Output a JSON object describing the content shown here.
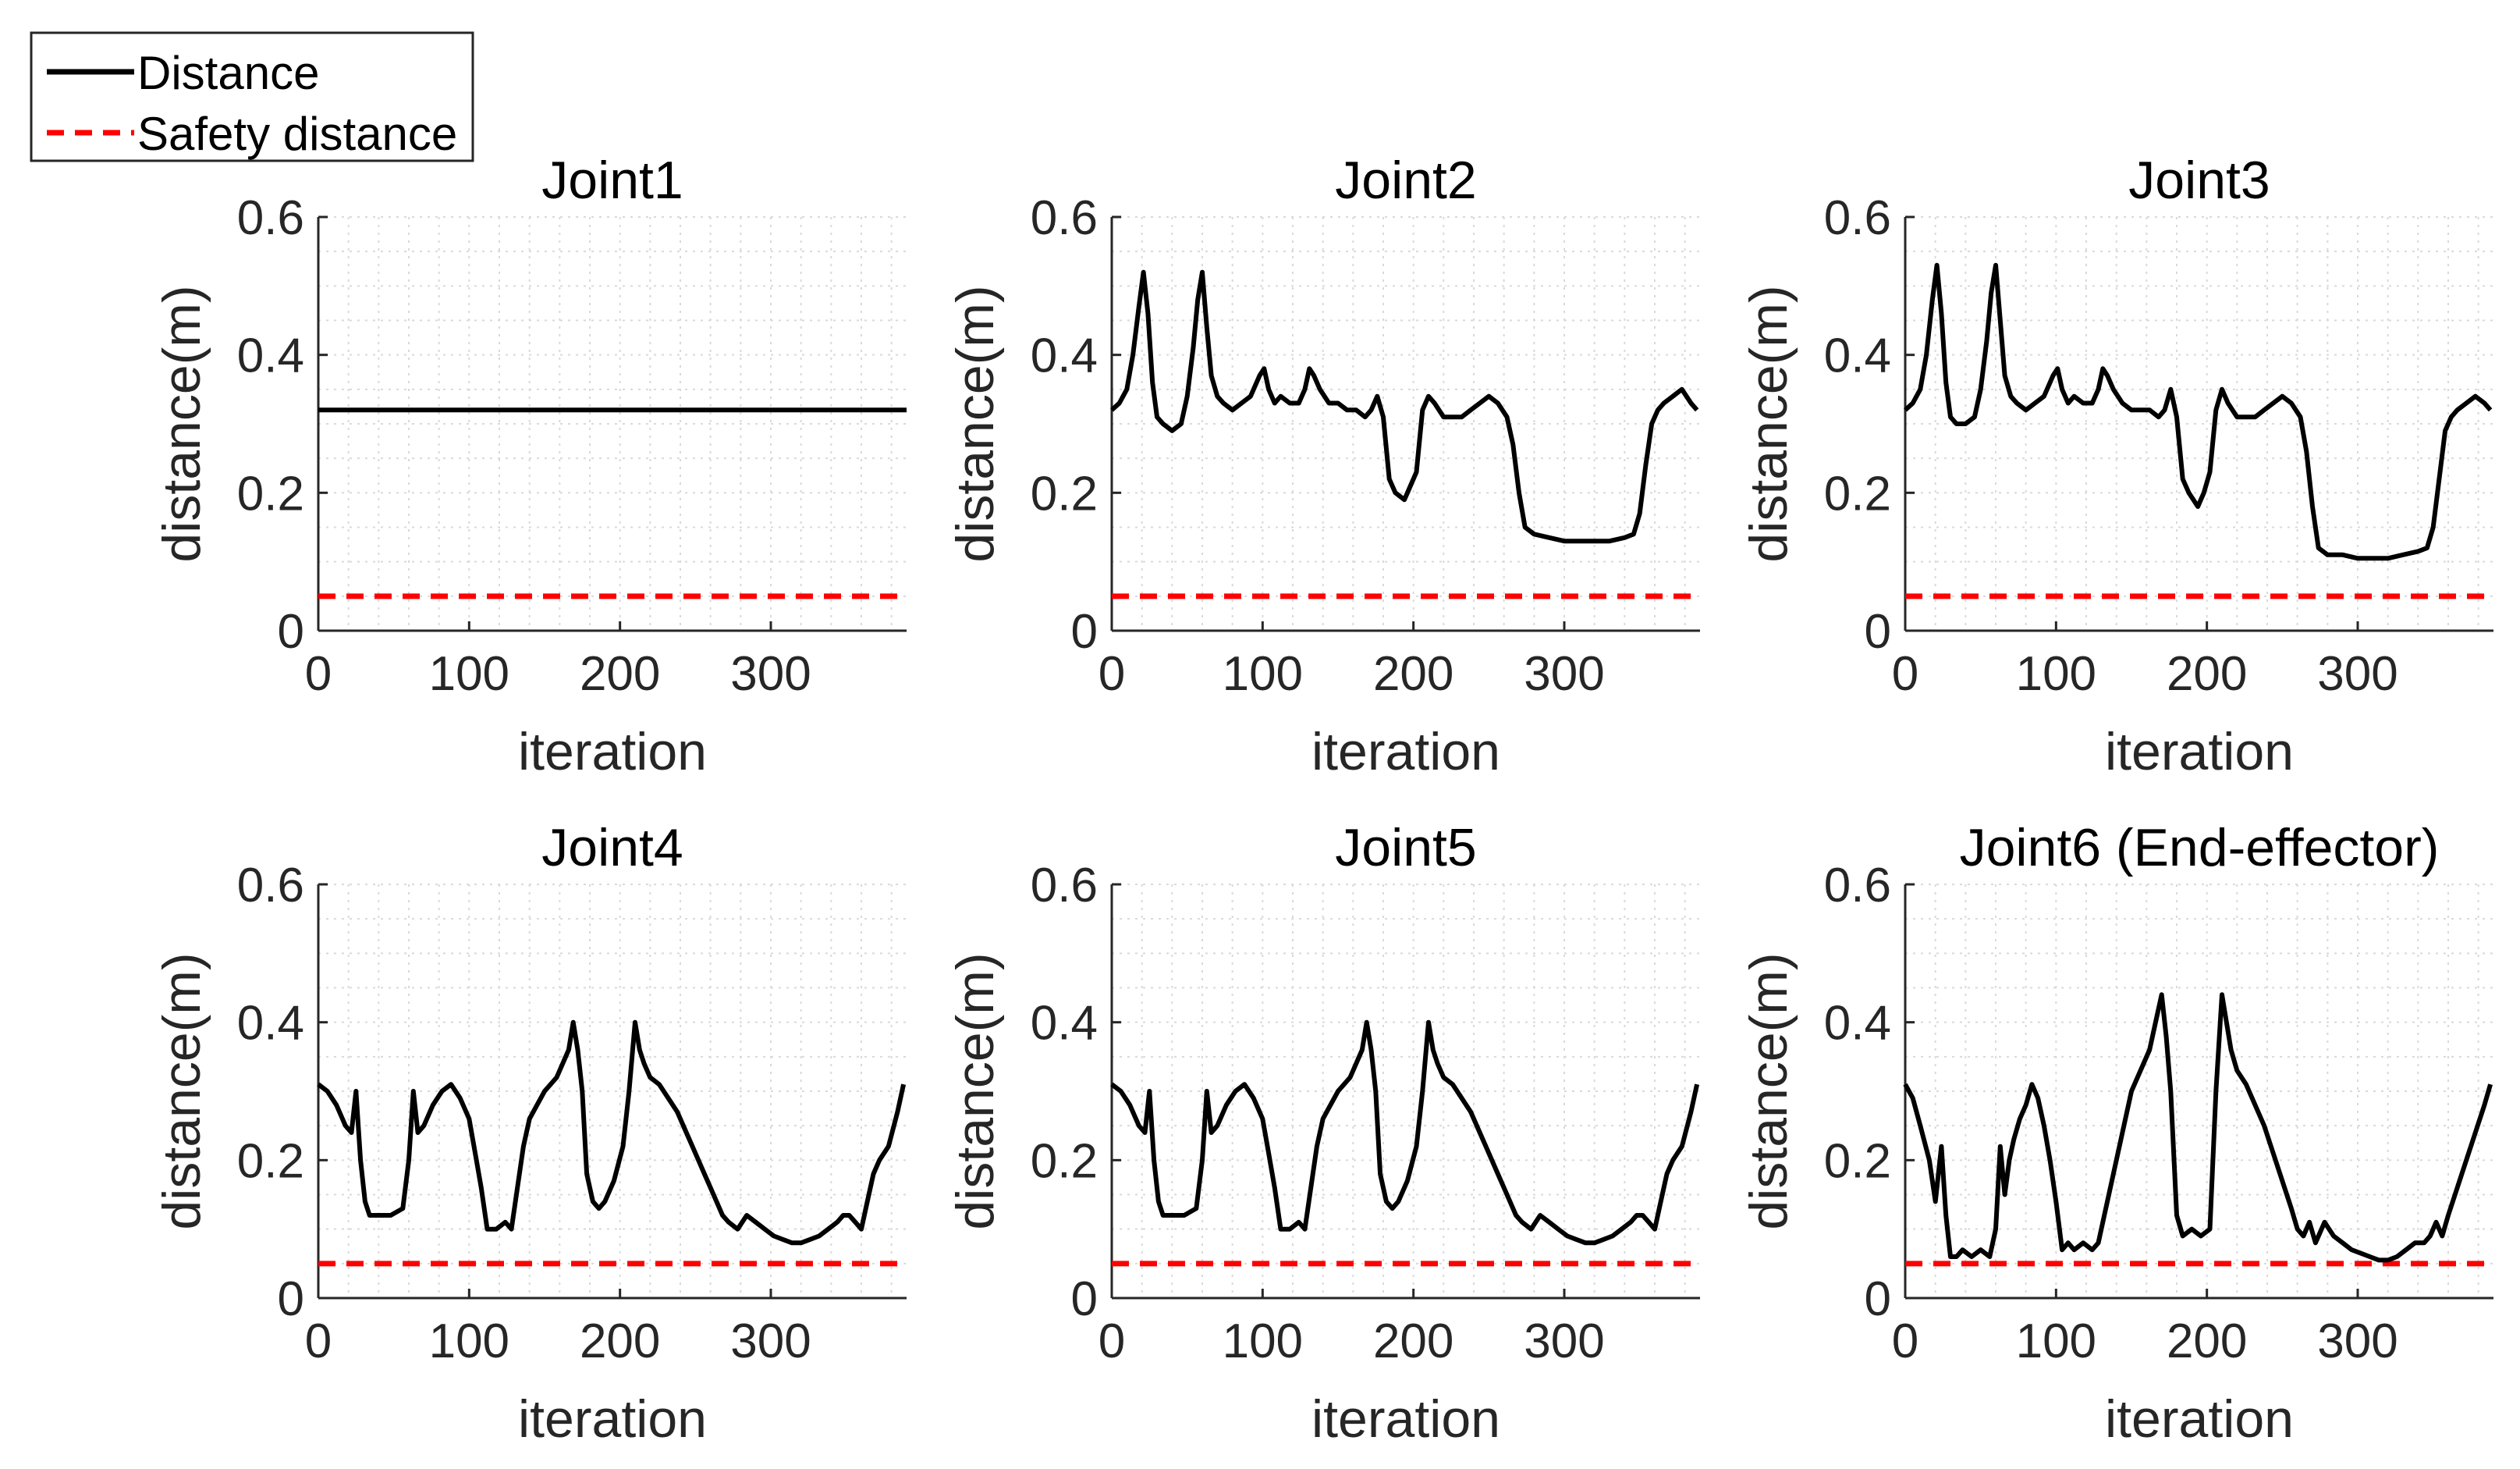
{
  "legend": {
    "entries": [
      {
        "label": "Distance",
        "color": "#000000",
        "style": "solid"
      },
      {
        "label": "Safety distance",
        "color": "#ff0000",
        "style": "dashed"
      }
    ],
    "placement": "top-left"
  },
  "chart_data": [
    {
      "type": "line",
      "title": "Joint1",
      "xlabel": "iteration",
      "ylabel": "distance(m)",
      "xlim": [
        0,
        390
      ],
      "ylim": [
        0,
        0.6
      ],
      "xticks": [
        "0",
        "100",
        "200",
        "300"
      ],
      "yticks": [
        "0",
        "0.2",
        "0.4",
        "0.6"
      ],
      "grid": true,
      "safety_distance": 0.05,
      "series": [
        {
          "name": "Distance",
          "x": [
            0,
            390
          ],
          "y": [
            0.32,
            0.32
          ]
        }
      ]
    },
    {
      "type": "line",
      "title": "Joint2",
      "xlabel": "iteration",
      "ylabel": "distance(m)",
      "xlim": [
        0,
        390
      ],
      "ylim": [
        0,
        0.6
      ],
      "xticks": [
        "0",
        "100",
        "200",
        "300"
      ],
      "yticks": [
        "0",
        "0.2",
        "0.4",
        "0.6"
      ],
      "grid": true,
      "safety_distance": 0.05,
      "series": [
        {
          "name": "Distance",
          "x": [
            0,
            5,
            10,
            14,
            18,
            21,
            24,
            27,
            30,
            34,
            40,
            46,
            50,
            54,
            57,
            60,
            63,
            66,
            70,
            74,
            80,
            86,
            92,
            98,
            101,
            104,
            108,
            112,
            118,
            124,
            128,
            131,
            134,
            138,
            144,
            150,
            156,
            162,
            168,
            172,
            176,
            180,
            184,
            188,
            194,
            198,
            202,
            206,
            210,
            214,
            220,
            226,
            232,
            238,
            244,
            250,
            256,
            262,
            266,
            270,
            274,
            280,
            290,
            300,
            310,
            320,
            330,
            340,
            346,
            350,
            354,
            358,
            362,
            366,
            372,
            378,
            384,
            388
          ],
          "y": [
            0.32,
            0.33,
            0.35,
            0.4,
            0.47,
            0.52,
            0.46,
            0.36,
            0.31,
            0.3,
            0.29,
            0.3,
            0.34,
            0.41,
            0.48,
            0.52,
            0.44,
            0.37,
            0.34,
            0.33,
            0.32,
            0.33,
            0.34,
            0.37,
            0.38,
            0.35,
            0.33,
            0.34,
            0.33,
            0.33,
            0.35,
            0.38,
            0.37,
            0.35,
            0.33,
            0.33,
            0.32,
            0.32,
            0.31,
            0.32,
            0.34,
            0.31,
            0.22,
            0.2,
            0.19,
            0.21,
            0.23,
            0.32,
            0.34,
            0.33,
            0.31,
            0.31,
            0.31,
            0.32,
            0.33,
            0.34,
            0.33,
            0.31,
            0.27,
            0.2,
            0.15,
            0.14,
            0.135,
            0.13,
            0.13,
            0.13,
            0.13,
            0.135,
            0.14,
            0.17,
            0.24,
            0.3,
            0.32,
            0.33,
            0.34,
            0.35,
            0.33,
            0.32
          ]
        }
      ]
    },
    {
      "type": "line",
      "title": "Joint3",
      "xlabel": "iteration",
      "ylabel": "distance(m)",
      "xlim": [
        0,
        390
      ],
      "ylim": [
        0,
        0.6
      ],
      "xticks": [
        "0",
        "100",
        "200",
        "300"
      ],
      "yticks": [
        "0",
        "0.2",
        "0.4",
        "0.6"
      ],
      "grid": true,
      "safety_distance": 0.05,
      "series": [
        {
          "name": "Distance",
          "x": [
            0,
            5,
            10,
            14,
            18,
            21,
            24,
            27,
            30,
            34,
            40,
            46,
            50,
            54,
            57,
            60,
            63,
            66,
            70,
            74,
            80,
            86,
            92,
            98,
            101,
            104,
            108,
            112,
            118,
            124,
            128,
            131,
            134,
            138,
            144,
            150,
            156,
            162,
            168,
            172,
            176,
            180,
            184,
            188,
            194,
            198,
            202,
            206,
            210,
            214,
            220,
            226,
            232,
            238,
            244,
            250,
            256,
            262,
            266,
            270,
            274,
            280,
            290,
            300,
            310,
            320,
            330,
            340,
            346,
            350,
            354,
            358,
            362,
            366,
            372,
            378,
            384,
            388
          ],
          "y": [
            0.32,
            0.33,
            0.35,
            0.4,
            0.48,
            0.53,
            0.46,
            0.36,
            0.31,
            0.3,
            0.3,
            0.31,
            0.35,
            0.42,
            0.49,
            0.53,
            0.45,
            0.37,
            0.34,
            0.33,
            0.32,
            0.33,
            0.34,
            0.37,
            0.38,
            0.35,
            0.33,
            0.34,
            0.33,
            0.33,
            0.35,
            0.38,
            0.37,
            0.35,
            0.33,
            0.32,
            0.32,
            0.32,
            0.31,
            0.32,
            0.35,
            0.31,
            0.22,
            0.2,
            0.18,
            0.2,
            0.23,
            0.32,
            0.35,
            0.33,
            0.31,
            0.31,
            0.31,
            0.32,
            0.33,
            0.34,
            0.33,
            0.31,
            0.26,
            0.18,
            0.12,
            0.11,
            0.11,
            0.105,
            0.105,
            0.105,
            0.11,
            0.115,
            0.12,
            0.15,
            0.22,
            0.29,
            0.31,
            0.32,
            0.33,
            0.34,
            0.33,
            0.32
          ]
        }
      ]
    },
    {
      "type": "line",
      "title": "Joint4",
      "xlabel": "iteration",
      "ylabel": "distance(m)",
      "xlim": [
        0,
        390
      ],
      "ylim": [
        0,
        0.6
      ],
      "xticks": [
        "0",
        "100",
        "200",
        "300"
      ],
      "yticks": [
        "0",
        "0.2",
        "0.4",
        "0.6"
      ],
      "grid": true,
      "safety_distance": 0.05,
      "series": [
        {
          "name": "Distance",
          "x": [
            0,
            6,
            12,
            18,
            22,
            25,
            28,
            31,
            34,
            40,
            48,
            56,
            60,
            63,
            66,
            70,
            76,
            82,
            88,
            94,
            100,
            104,
            108,
            112,
            118,
            124,
            128,
            132,
            136,
            140,
            150,
            158,
            162,
            166,
            169,
            172,
            175,
            178,
            182,
            186,
            190,
            196,
            202,
            206,
            210,
            213,
            216,
            220,
            226,
            232,
            238,
            244,
            248,
            252,
            256,
            260,
            264,
            268,
            272,
            278,
            284,
            290,
            296,
            302,
            308,
            314,
            320,
            326,
            332,
            338,
            344,
            348,
            352,
            356,
            360,
            364,
            368,
            372,
            378,
            384,
            388
          ],
          "y": [
            0.31,
            0.3,
            0.28,
            0.25,
            0.24,
            0.3,
            0.2,
            0.14,
            0.12,
            0.12,
            0.12,
            0.13,
            0.2,
            0.3,
            0.24,
            0.25,
            0.28,
            0.3,
            0.31,
            0.29,
            0.26,
            0.21,
            0.16,
            0.1,
            0.1,
            0.11,
            0.1,
            0.16,
            0.22,
            0.26,
            0.3,
            0.32,
            0.34,
            0.36,
            0.4,
            0.36,
            0.3,
            0.18,
            0.14,
            0.13,
            0.14,
            0.17,
            0.22,
            0.3,
            0.4,
            0.36,
            0.34,
            0.32,
            0.31,
            0.29,
            0.27,
            0.24,
            0.22,
            0.2,
            0.18,
            0.16,
            0.14,
            0.12,
            0.11,
            0.1,
            0.12,
            0.11,
            0.1,
            0.09,
            0.085,
            0.08,
            0.08,
            0.085,
            0.09,
            0.1,
            0.11,
            0.12,
            0.12,
            0.11,
            0.1,
            0.14,
            0.18,
            0.2,
            0.22,
            0.27,
            0.31
          ]
        }
      ]
    },
    {
      "type": "line",
      "title": "Joint5",
      "xlabel": "iteration",
      "ylabel": "distance(m)",
      "xlim": [
        0,
        390
      ],
      "ylim": [
        0,
        0.6
      ],
      "xticks": [
        "0",
        "100",
        "200",
        "300"
      ],
      "yticks": [
        "0",
        "0.2",
        "0.4",
        "0.6"
      ],
      "grid": true,
      "safety_distance": 0.05,
      "series": [
        {
          "name": "Distance",
          "x": [
            0,
            6,
            12,
            18,
            22,
            25,
            28,
            31,
            34,
            40,
            48,
            56,
            60,
            63,
            66,
            70,
            76,
            82,
            88,
            94,
            100,
            104,
            108,
            112,
            118,
            124,
            128,
            132,
            136,
            140,
            150,
            158,
            162,
            166,
            169,
            172,
            175,
            178,
            182,
            186,
            190,
            196,
            202,
            206,
            210,
            213,
            216,
            220,
            226,
            232,
            238,
            244,
            248,
            252,
            256,
            260,
            264,
            268,
            272,
            278,
            284,
            290,
            296,
            302,
            308,
            314,
            320,
            326,
            332,
            338,
            344,
            348,
            352,
            356,
            360,
            364,
            368,
            372,
            378,
            384,
            388
          ],
          "y": [
            0.31,
            0.3,
            0.28,
            0.25,
            0.24,
            0.3,
            0.2,
            0.14,
            0.12,
            0.12,
            0.12,
            0.13,
            0.2,
            0.3,
            0.24,
            0.25,
            0.28,
            0.3,
            0.31,
            0.29,
            0.26,
            0.21,
            0.16,
            0.1,
            0.1,
            0.11,
            0.1,
            0.16,
            0.22,
            0.26,
            0.3,
            0.32,
            0.34,
            0.36,
            0.4,
            0.36,
            0.3,
            0.18,
            0.14,
            0.13,
            0.14,
            0.17,
            0.22,
            0.3,
            0.4,
            0.36,
            0.34,
            0.32,
            0.31,
            0.29,
            0.27,
            0.24,
            0.22,
            0.2,
            0.18,
            0.16,
            0.14,
            0.12,
            0.11,
            0.1,
            0.12,
            0.11,
            0.1,
            0.09,
            0.085,
            0.08,
            0.08,
            0.085,
            0.09,
            0.1,
            0.11,
            0.12,
            0.12,
            0.11,
            0.1,
            0.14,
            0.18,
            0.2,
            0.22,
            0.27,
            0.31
          ]
        }
      ]
    },
    {
      "type": "line",
      "title": "Joint6 (End-effector)",
      "xlabel": "iteration",
      "ylabel": "distance(m)",
      "xlim": [
        0,
        390
      ],
      "ylim": [
        0,
        0.6
      ],
      "xticks": [
        "0",
        "100",
        "200",
        "300"
      ],
      "yticks": [
        "0",
        "0.2",
        "0.4",
        "0.6"
      ],
      "grid": true,
      "safety_distance": 0.05,
      "series": [
        {
          "name": "Distance",
          "x": [
            0,
            5,
            10,
            16,
            20,
            24,
            27,
            30,
            34,
            38,
            44,
            50,
            56,
            60,
            63,
            66,
            69,
            72,
            76,
            80,
            84,
            88,
            92,
            96,
            100,
            104,
            108,
            112,
            118,
            124,
            128,
            132,
            138,
            144,
            150,
            156,
            162,
            166,
            170,
            173,
            176,
            180,
            184,
            190,
            196,
            202,
            206,
            210,
            213,
            216,
            220,
            226,
            232,
            238,
            244,
            250,
            256,
            260,
            264,
            268,
            272,
            278,
            284,
            290,
            296,
            302,
            308,
            314,
            320,
            326,
            332,
            338,
            344,
            348,
            352,
            356,
            360,
            366,
            372,
            378,
            384,
            388
          ],
          "y": [
            0.31,
            0.29,
            0.25,
            0.2,
            0.14,
            0.22,
            0.12,
            0.06,
            0.06,
            0.07,
            0.06,
            0.07,
            0.06,
            0.1,
            0.22,
            0.15,
            0.2,
            0.23,
            0.26,
            0.28,
            0.31,
            0.29,
            0.25,
            0.2,
            0.14,
            0.07,
            0.08,
            0.07,
            0.08,
            0.07,
            0.08,
            0.12,
            0.18,
            0.24,
            0.3,
            0.33,
            0.36,
            0.4,
            0.44,
            0.38,
            0.3,
            0.12,
            0.09,
            0.1,
            0.09,
            0.1,
            0.3,
            0.44,
            0.4,
            0.36,
            0.33,
            0.31,
            0.28,
            0.25,
            0.21,
            0.17,
            0.13,
            0.1,
            0.09,
            0.11,
            0.08,
            0.11,
            0.09,
            0.08,
            0.07,
            0.065,
            0.06,
            0.055,
            0.055,
            0.06,
            0.07,
            0.08,
            0.08,
            0.09,
            0.11,
            0.09,
            0.12,
            0.16,
            0.2,
            0.24,
            0.28,
            0.31
          ]
        }
      ]
    }
  ]
}
